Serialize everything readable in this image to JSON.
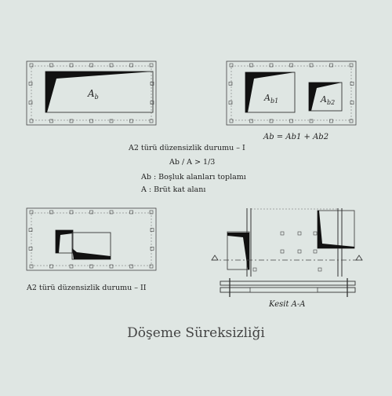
{
  "figure1": {
    "label_main": "A",
    "label_sub": "b"
  },
  "figure2": {
    "label1_main": "A",
    "label1_sub": "b1",
    "label2_main": "A",
    "label2_sub": "b2",
    "formula": "Ab = Ab1 + Ab2"
  },
  "description": {
    "title1": "A2 türü düzensizlik durumu – I",
    "ratio": "Ab / A > 1/3",
    "def_ab": "Ab : Boşluk alanları toplamı",
    "def_a": "A  : Brüt kat alanı"
  },
  "figure3": {
    "title2": "A2 türü düzensizlik durumu – II"
  },
  "figure4": {
    "section_label": "Kesit A-A"
  },
  "caption": "Döşeme Süreksizliği"
}
